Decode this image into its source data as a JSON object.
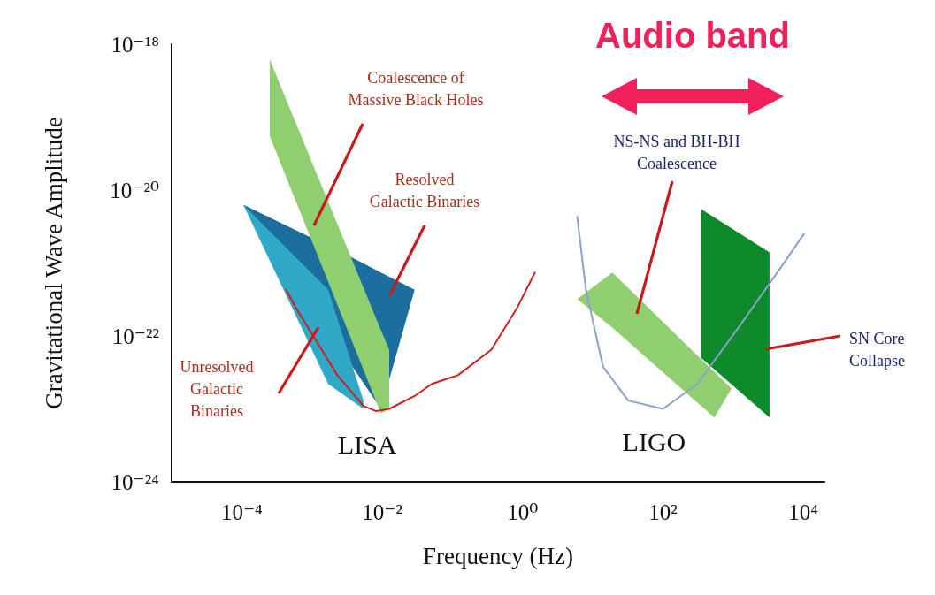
{
  "chart_data": {
    "type": "line",
    "xlabel": "Frequency (Hz)",
    "ylabel": "Gravitational Wave Amplitude",
    "log": "xy",
    "grid": false,
    "legend": false,
    "marker": "none",
    "xlim": [
      1e-05,
      20000
    ],
    "ylim": [
      1e-24,
      1e-18
    ],
    "xticks": [
      {
        "value": 0.0001,
        "label": "10⁻⁴"
      },
      {
        "value": 0.01,
        "label": "10⁻²"
      },
      {
        "value": 1,
        "label": "10⁰"
      },
      {
        "value": 100,
        "label": "10²"
      },
      {
        "value": 10000,
        "label": "10⁴"
      }
    ],
    "yticks": [
      {
        "value": 1e-24,
        "label": "10⁻²⁴"
      },
      {
        "value": 1e-22,
        "label": "10⁻²²"
      },
      {
        "value": 1e-20,
        "label": "10⁻²⁰"
      },
      {
        "value": 1e-18,
        "label": "10⁻¹⁸"
      }
    ],
    "series": [
      {
        "type": "area",
        "color": "#1b6e9e",
        "x": [
          0.000105,
          0.0031,
          0.0096,
          0.029,
          0.0096
        ],
        "values": [
          6.3e-21,
          1.3e-21,
          7.4e-22,
          4.3e-22,
          1e-23
        ]
      },
      {
        "type": "area",
        "color": "#30a8c8",
        "x": [
          0.000105,
          0.0017,
          0.0054,
          0.0054,
          0.0017
        ],
        "values": [
          6.3e-21,
          4.3e-22,
          1.3e-23,
          1e-23,
          2.2e-23
        ]
      },
      {
        "type": "area",
        "color": "#8fcf70",
        "x": [
          0.00025,
          0.0096,
          0.0126,
          0.0126,
          0.0096,
          0.00025
        ],
        "values": [
          6.2e-19,
          1.2e-22,
          6.5e-23,
          1e-23,
          8.7e-24,
          5.5e-20
        ]
      },
      {
        "type": "area",
        "color": "#0f8a2a",
        "x": [
          350,
          3300,
          3300,
          350
        ],
        "values": [
          5.5e-21,
          1.4e-21,
          7.6e-24,
          5e-23
        ]
      },
      {
        "type": "area",
        "color": "#8fcf70",
        "x": [
          6,
          19,
          540,
          950,
          540,
          19
        ],
        "values": [
          3.2e-22,
          7.4e-22,
          3.2e-23,
          1.9e-23,
          7.6e-24,
          1.3e-22
        ]
      },
      {
        "name": "LISA",
        "color": "#cc2222",
        "x": [
          0.00043,
          0.00058,
          0.0023,
          0.0054,
          0.0082,
          0.0126,
          0.029,
          0.051,
          0.12,
          0.36,
          0.85,
          1.5
        ],
        "values": [
          4.3e-22,
          2.5e-22,
          2.9e-23,
          1.1e-23,
          9.3e-24,
          1e-23,
          1.5e-23,
          2.2e-23,
          2.9e-23,
          6.5e-23,
          2.5e-22,
          7.4e-22
        ]
      },
      {
        "name": "LIGO",
        "color": "#8aa0d0",
        "x": [
          6,
          8,
          14,
          32,
          100,
          310,
          1260,
          5100,
          10200
        ],
        "values": [
          4.3e-21,
          4.3e-22,
          3.8e-23,
          1.3e-23,
          1e-23,
          2.2e-23,
          1.4e-22,
          9.5e-22,
          2.5e-21
        ]
      }
    ],
    "annotations": [
      "Audio band",
      "Coalescence of\nMassive Black Holes",
      "Resolved\nGalactic Binaries",
      "Unresolved\nGalactic\nBinaries",
      "NS-NS and BH-BH\nCoalescence",
      "SN Core\nCollapse"
    ]
  }
}
